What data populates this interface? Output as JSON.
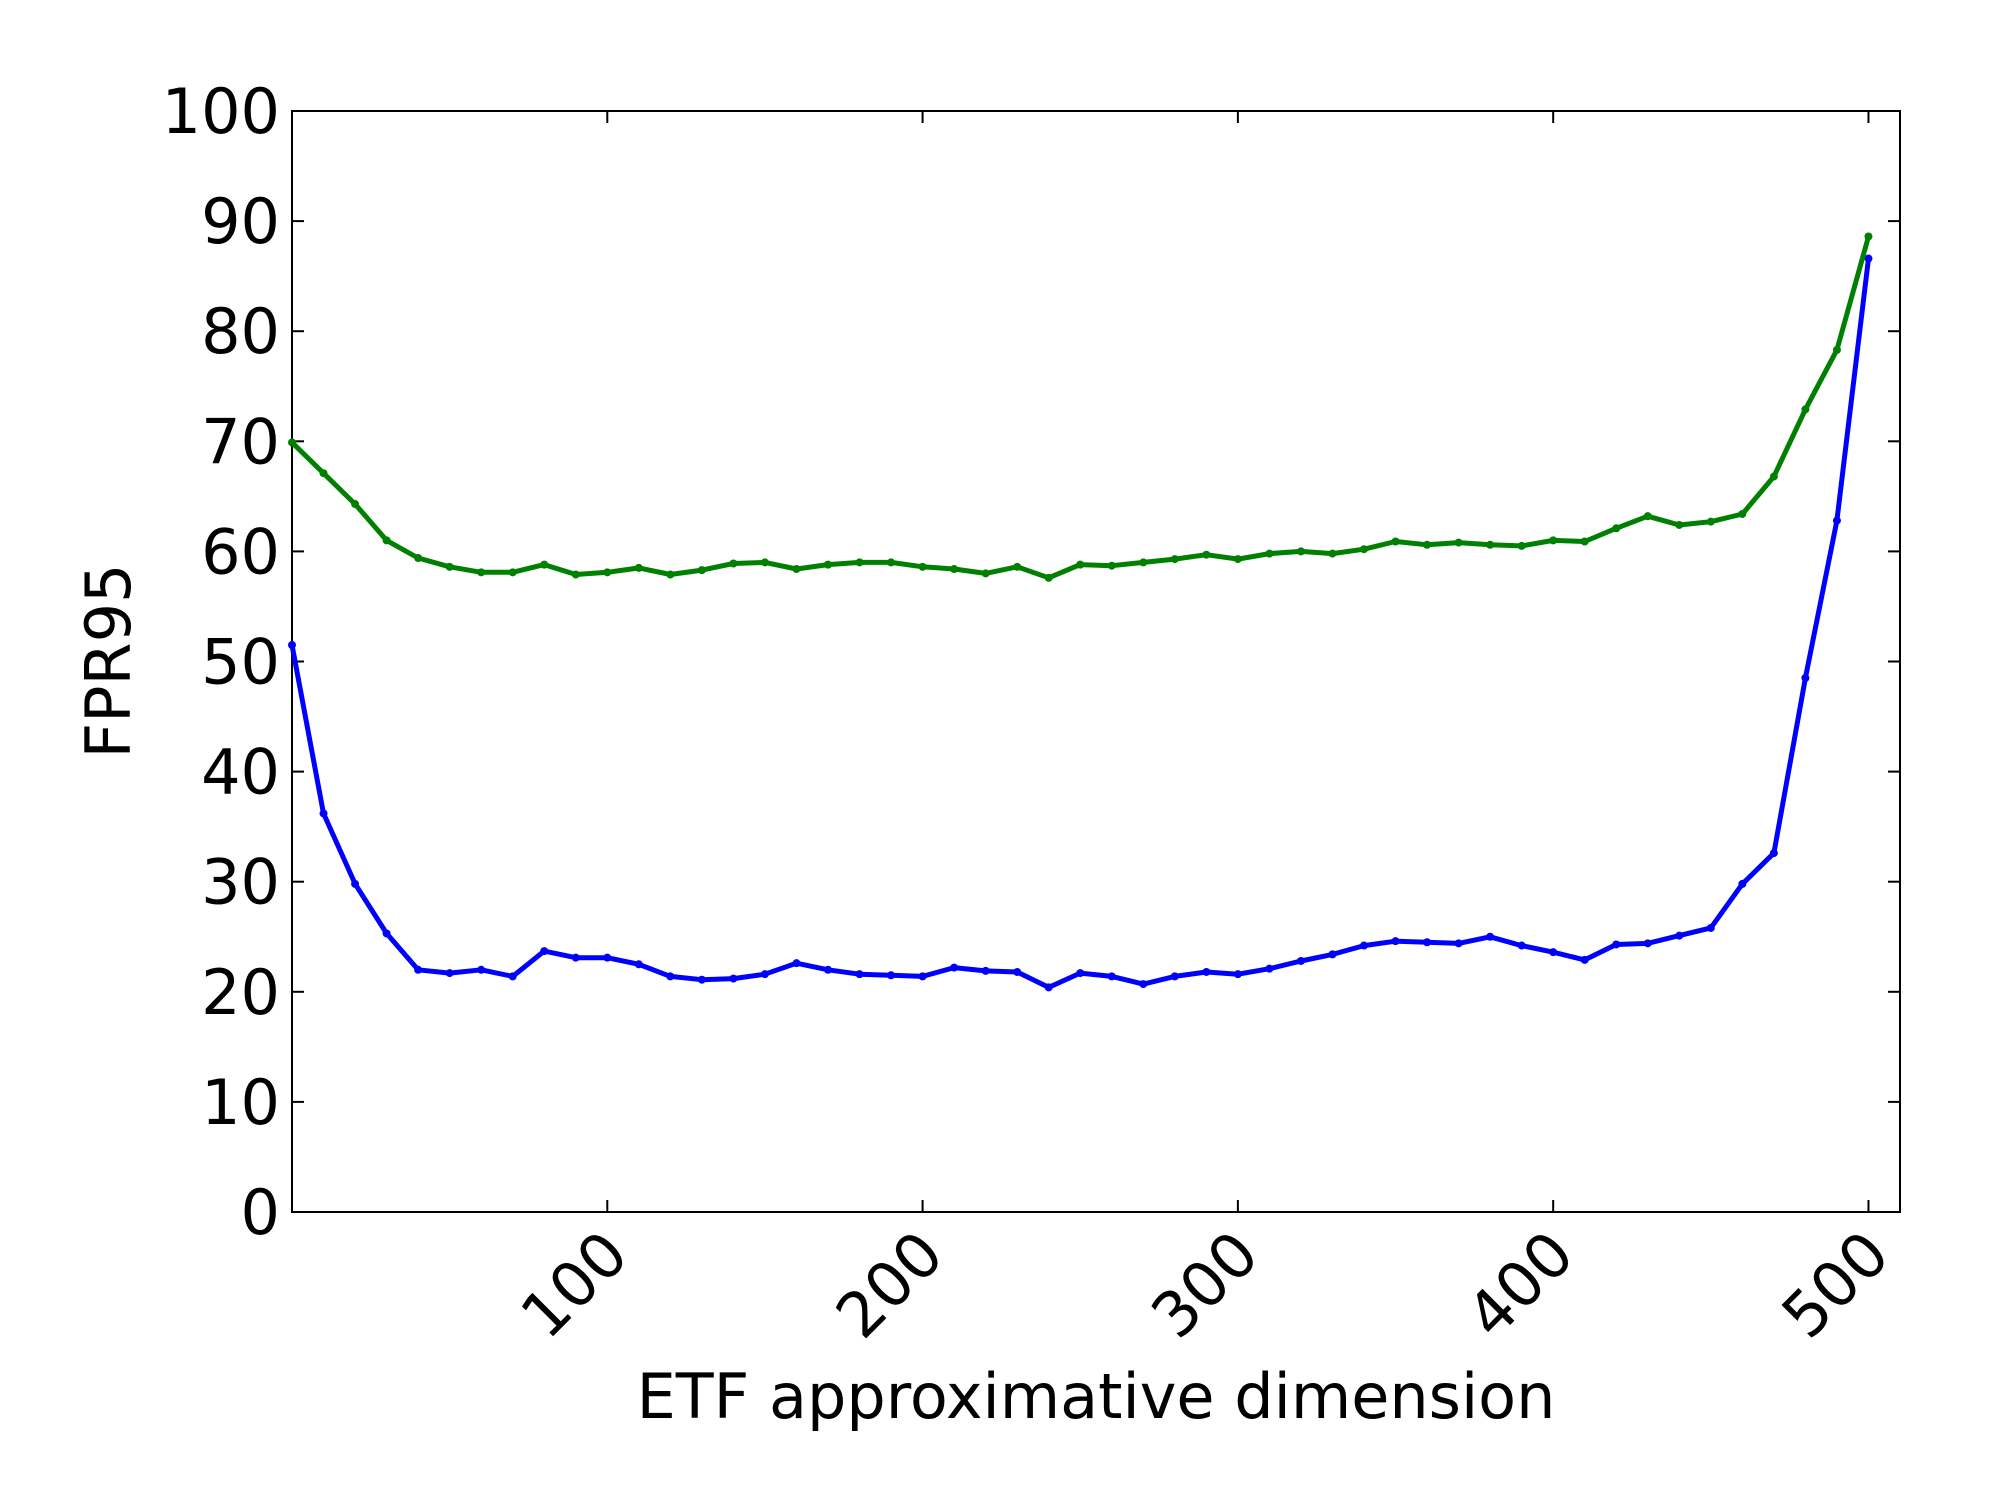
{
  "chart_data": {
    "type": "line",
    "title": "",
    "xlabel": "ETF approximative dimension",
    "ylabel": "FPR95",
    "xlim": [
      0,
      510
    ],
    "ylim": [
      0,
      100
    ],
    "grid": false,
    "legend": "none",
    "xticks": [
      100,
      200,
      300,
      400,
      500
    ],
    "xtick_labels": [
      "100",
      "200",
      "300",
      "400",
      "500"
    ],
    "yticks": [
      0,
      10,
      20,
      30,
      40,
      50,
      60,
      70,
      80,
      90,
      100
    ],
    "ytick_labels": [
      "0",
      "10",
      "20",
      "30",
      "40",
      "50",
      "60",
      "70",
      "80",
      "90",
      "100"
    ],
    "x": [
      0,
      10,
      20,
      30,
      40,
      50,
      60,
      70,
      80,
      90,
      100,
      110,
      120,
      130,
      140,
      150,
      160,
      170,
      180,
      190,
      200,
      210,
      220,
      230,
      240,
      250,
      260,
      270,
      280,
      290,
      300,
      310,
      320,
      330,
      340,
      350,
      360,
      370,
      380,
      390,
      400,
      410,
      420,
      430,
      440,
      450,
      460,
      470,
      480,
      490,
      500
    ],
    "series": [
      {
        "color": "#0000ff",
        "values": [
          51.5,
          36.2,
          29.8,
          25.3,
          22.0,
          21.7,
          22.0,
          21.4,
          23.7,
          23.1,
          23.1,
          22.5,
          21.4,
          21.1,
          21.2,
          21.6,
          22.6,
          22.0,
          21.6,
          21.5,
          21.4,
          22.2,
          21.9,
          21.8,
          20.4,
          21.7,
          21.4,
          20.7,
          21.4,
          21.8,
          21.6,
          22.1,
          22.8,
          23.4,
          24.2,
          24.6,
          24.5,
          24.4,
          25.0,
          24.2,
          23.6,
          22.9,
          24.3,
          24.4,
          25.1,
          25.8,
          29.8,
          32.6,
          48.5,
          62.8,
          86.6
        ]
      },
      {
        "color": "#008000",
        "values": [
          69.9,
          67.1,
          64.3,
          61.0,
          59.4,
          58.6,
          58.1,
          58.1,
          58.8,
          57.9,
          58.1,
          58.5,
          57.9,
          58.3,
          58.9,
          59.0,
          58.4,
          58.8,
          59.0,
          59.0,
          58.6,
          58.4,
          58.0,
          58.6,
          57.6,
          58.8,
          58.7,
          59.0,
          59.3,
          59.7,
          59.3,
          59.8,
          60.0,
          59.8,
          60.2,
          60.9,
          60.6,
          60.8,
          60.6,
          60.5,
          61.0,
          60.9,
          62.1,
          63.2,
          62.4,
          62.7,
          63.4,
          66.8,
          72.9,
          78.3,
          88.6
        ]
      }
    ]
  }
}
